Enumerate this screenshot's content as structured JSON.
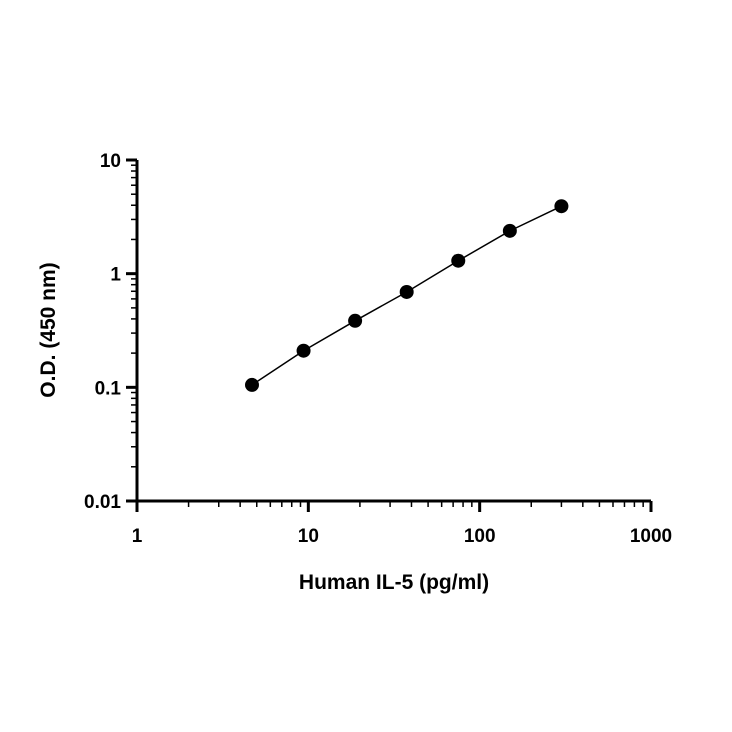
{
  "chart_data": {
    "type": "scatter",
    "xlabel": "Human IL-5 (pg/ml)",
    "ylabel": "O.D. (450 nm)",
    "x_scale": "log",
    "y_scale": "log",
    "xlim": [
      1,
      1000
    ],
    "ylim": [
      0.01,
      10
    ],
    "x_ticks": [
      "1",
      "10",
      "100",
      "1000"
    ],
    "y_ticks": [
      "0.01",
      "0.1",
      "1",
      "10"
    ],
    "grid": false,
    "legend": "none",
    "series": [
      {
        "x": [
          4.69,
          9.38,
          18.75,
          37.5,
          75,
          150,
          300
        ],
        "y": [
          0.105,
          0.21,
          0.385,
          0.69,
          1.3,
          2.38,
          3.92
        ],
        "marker": "circle",
        "color": "#000000",
        "fit_line": true
      }
    ]
  }
}
